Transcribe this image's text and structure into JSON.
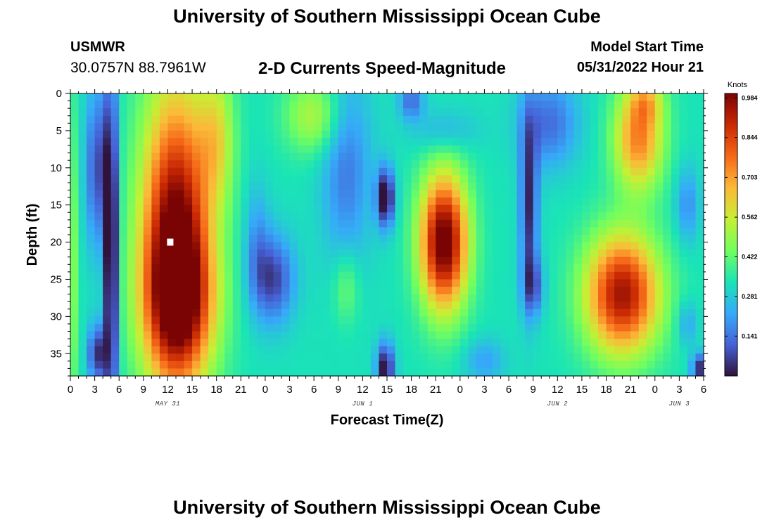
{
  "header": {
    "title": "University of Southern Mississippi Ocean Cube",
    "station": "USMWR",
    "coordinates": "30.0757N  88.7961W",
    "subtitle": "2-D Currents Speed-Magnitude",
    "start_label": "Model Start Time",
    "start_value": "05/31/2022 Hour 21"
  },
  "footer": {
    "title": "University of Southern Mississippi Ocean Cube"
  },
  "colors": {
    "scale": [
      "#30123b",
      "#4662d7",
      "#36aaf9",
      "#1ae4b6",
      "#72fe5e",
      "#c7ef34",
      "#fbb938",
      "#f56918",
      "#c92903",
      "#7a0403"
    ],
    "marker": "#ffffff"
  },
  "chart_data": {
    "type": "heatmap",
    "title": "2-D Currents Speed-Magnitude",
    "xlabel": "Forecast Time(Z)",
    "ylabel": "Depth (ft)",
    "ylim": [
      0,
      38
    ],
    "y_ticks": [
      0,
      5,
      10,
      15,
      20,
      25,
      30,
      35
    ],
    "x_ticks": [
      "0",
      "3",
      "6",
      "9",
      "12",
      "15",
      "18",
      "21",
      "0",
      "3",
      "6",
      "9",
      "12",
      "15",
      "18",
      "21",
      "0",
      "3",
      "6",
      "9",
      "12",
      "15",
      "18",
      "21",
      "0",
      "3",
      "6"
    ],
    "x_range_hours": [
      0,
      78
    ],
    "date_labels": [
      {
        "text": "MAY 31",
        "hour": 12
      },
      {
        "text": "JUN 1",
        "hour": 36
      },
      {
        "text": "JUN 2",
        "hour": 60
      },
      {
        "text": "JUN 3",
        "hour": 75
      }
    ],
    "colorbar": {
      "unit": "Knots",
      "range": [
        0,
        1.0
      ],
      "tick_values": [
        0.984,
        0.844,
        0.703,
        0.562,
        0.422,
        0.281,
        0.141
      ],
      "tick_labels": [
        "0.984",
        "0.844",
        "0.703",
        "0.562",
        "0.422",
        "0.281",
        "0.141"
      ]
    },
    "marker": {
      "hour": 12.3,
      "depth_ft": 20
    },
    "field": {
      "background": 0.33,
      "features": [
        {
          "hour": 13,
          "depth": 20,
          "sx": 4.2,
          "sy": 20,
          "amp": 0.72
        },
        {
          "hour": 13.5,
          "depth": 28,
          "sx": 4.5,
          "sy": 9,
          "amp": 0.32
        },
        {
          "hour": 18,
          "depth": 6,
          "sx": 2.2,
          "sy": 9,
          "amp": 0.22
        },
        {
          "hour": 5,
          "depth": 22,
          "sx": 0.8,
          "sy": 25,
          "amp": -0.45
        },
        {
          "hour": 3.3,
          "depth": 10,
          "sx": 1.4,
          "sy": 11,
          "amp": -0.25
        },
        {
          "hour": 3.3,
          "depth": 35,
          "sx": 1.1,
          "sy": 4,
          "amp": -0.3
        },
        {
          "hour": 0.4,
          "depth": 24,
          "sx": 0.6,
          "sy": 22,
          "amp": 0.12
        },
        {
          "hour": 25,
          "depth": 25,
          "sx": 2.6,
          "sy": 6,
          "amp": -0.26
        },
        {
          "hour": 23,
          "depth": 20,
          "sx": 1.5,
          "sy": 8,
          "amp": -0.12
        },
        {
          "hour": 30,
          "depth": 3,
          "sx": 3.5,
          "sy": 5,
          "amp": 0.2
        },
        {
          "hour": 34,
          "depth": 10,
          "sx": 3.0,
          "sy": 13,
          "amp": -0.18
        },
        {
          "hour": 34,
          "depth": 26,
          "sx": 1.6,
          "sy": 5,
          "amp": 0.12
        },
        {
          "hour": 38.8,
          "depth": 14,
          "sx": 1.1,
          "sy": 4,
          "amp": -0.38
        },
        {
          "hour": 38.8,
          "depth": 37,
          "sx": 1.1,
          "sy": 3.5,
          "amp": -0.35
        },
        {
          "hour": 42,
          "depth": 1,
          "sx": 1.5,
          "sy": 2.5,
          "amp": -0.2
        },
        {
          "hour": 46,
          "depth": 20,
          "sx": 2.9,
          "sy": 9,
          "amp": 0.72
        },
        {
          "hour": 46,
          "depth": 5,
          "sx": 4,
          "sy": 3,
          "amp": -0.1
        },
        {
          "hour": 51,
          "depth": 36,
          "sx": 2.5,
          "sy": 3,
          "amp": -0.12
        },
        {
          "hour": 56.5,
          "depth": 15,
          "sx": 1.1,
          "sy": 12,
          "amp": -0.3
        },
        {
          "hour": 57,
          "depth": 26,
          "sx": 1.3,
          "sy": 4,
          "amp": -0.2
        },
        {
          "hour": 59,
          "depth": 4,
          "sx": 3.5,
          "sy": 6,
          "amp": -0.2
        },
        {
          "hour": 68,
          "depth": 27,
          "sx": 4.5,
          "sy": 8,
          "amp": 0.62
        },
        {
          "hour": 70,
          "depth": 6,
          "sx": 3,
          "sy": 7,
          "amp": 0.42
        },
        {
          "hour": 71,
          "depth": 1,
          "sx": 2,
          "sy": 3,
          "amp": 0.18
        },
        {
          "hour": 76,
          "depth": 15,
          "sx": 1.4,
          "sy": 5,
          "amp": -0.15
        },
        {
          "hour": 76,
          "depth": 31,
          "sx": 1.2,
          "sy": 3,
          "amp": -0.12
        },
        {
          "hour": 77.5,
          "depth": 37,
          "sx": 1.0,
          "sy": 2,
          "amp": -0.3
        }
      ]
    }
  }
}
